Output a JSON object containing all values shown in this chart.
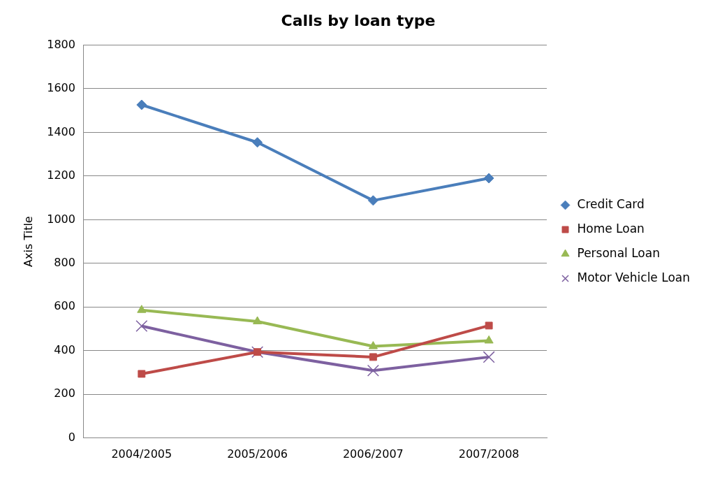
{
  "chart_data": {
    "type": "line",
    "title": "Calls by loan type",
    "ylabel": "Axis Title",
    "categories": [
      "2004/2005",
      "2005/2006",
      "2006/2007",
      "2007/2008"
    ],
    "series": [
      {
        "name": "Credit Card",
        "color": "#4a7ebb",
        "marker": "diamond",
        "values": [
          1526,
          1354,
          1088,
          1190
        ]
      },
      {
        "name": "Home Loan",
        "color": "#be4b48",
        "marker": "square",
        "values": [
          294,
          394,
          371,
          515
        ]
      },
      {
        "name": "Personal Loan",
        "color": "#98b954",
        "marker": "triangle",
        "values": [
          586,
          534,
          420,
          446
        ]
      },
      {
        "name": "Motor Vehicle Loan",
        "color": "#7d60a0",
        "marker": "cross",
        "values": [
          513,
          394,
          309,
          371
        ]
      }
    ],
    "ylim": [
      0,
      1800
    ],
    "yticks": [
      0,
      200,
      400,
      600,
      800,
      1000,
      1200,
      1400,
      1600,
      1800
    ],
    "grid": "y",
    "legend": "right"
  }
}
